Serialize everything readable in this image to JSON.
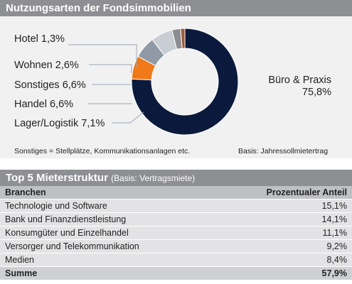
{
  "chart_header": "Nutzungsarten der Fondsimmobilien",
  "chart_data": {
    "type": "pie",
    "title": "Nutzungsarten der Fondsimmobilien",
    "slices": [
      {
        "label": "Büro & Praxis",
        "value_text": "75,8%",
        "value": 75.8,
        "color": "#0b1a3c"
      },
      {
        "label": "Lager/Logistik",
        "value_text": "7,1%",
        "value": 7.1,
        "color": "#f07a1a"
      },
      {
        "label": "Handel",
        "value_text": "6,6%",
        "value": 6.6,
        "color": "#8f9aa6"
      },
      {
        "label": "Sonstiges",
        "value_text": "6,6%",
        "value": 6.6,
        "color": "#c9ced4"
      },
      {
        "label": "Wohnen",
        "value_text": "2,6%",
        "value": 2.6,
        "color": "#8c8d90"
      },
      {
        "label": "Hotel",
        "value_text": "1,3%",
        "value": 1.3,
        "color": "#9a5b3b"
      }
    ]
  },
  "labels": {
    "hotel": "Hotel 1,3%",
    "wohnen": "Wohnen 2,6%",
    "sonstiges": "Sonstiges 6,6%",
    "handel": "Handel 6,6%",
    "lager": "Lager/Logistik 7,1%",
    "buero_name": "Büro & Praxis",
    "buero_value": "75,8%"
  },
  "footnote_left": "Sonstiges = Stellplätze, Kommunikationsanlagen etc.",
  "footnote_right": "Basis: Jahressollmietertrag",
  "table_header_title": "Top 5 Mieterstruktur",
  "table_header_sub": "(Basis: Vertragsmiete)",
  "table": {
    "columns": [
      "Branchen",
      "Prozentualer Anteil"
    ],
    "rows": [
      {
        "branch": "Technologie und Software",
        "share": "15,1%"
      },
      {
        "branch": "Bank und Finanzdienstleistung",
        "share": "14,1%"
      },
      {
        "branch": "Konsumgüter und Einzelhandel",
        "share": "11,1%"
      },
      {
        "branch": "Versorger und Telekommunikation",
        "share": "9,2%"
      },
      {
        "branch": "Medien",
        "share": "8,4%"
      }
    ],
    "total": {
      "label": "Summe",
      "share": "57,9%"
    }
  }
}
